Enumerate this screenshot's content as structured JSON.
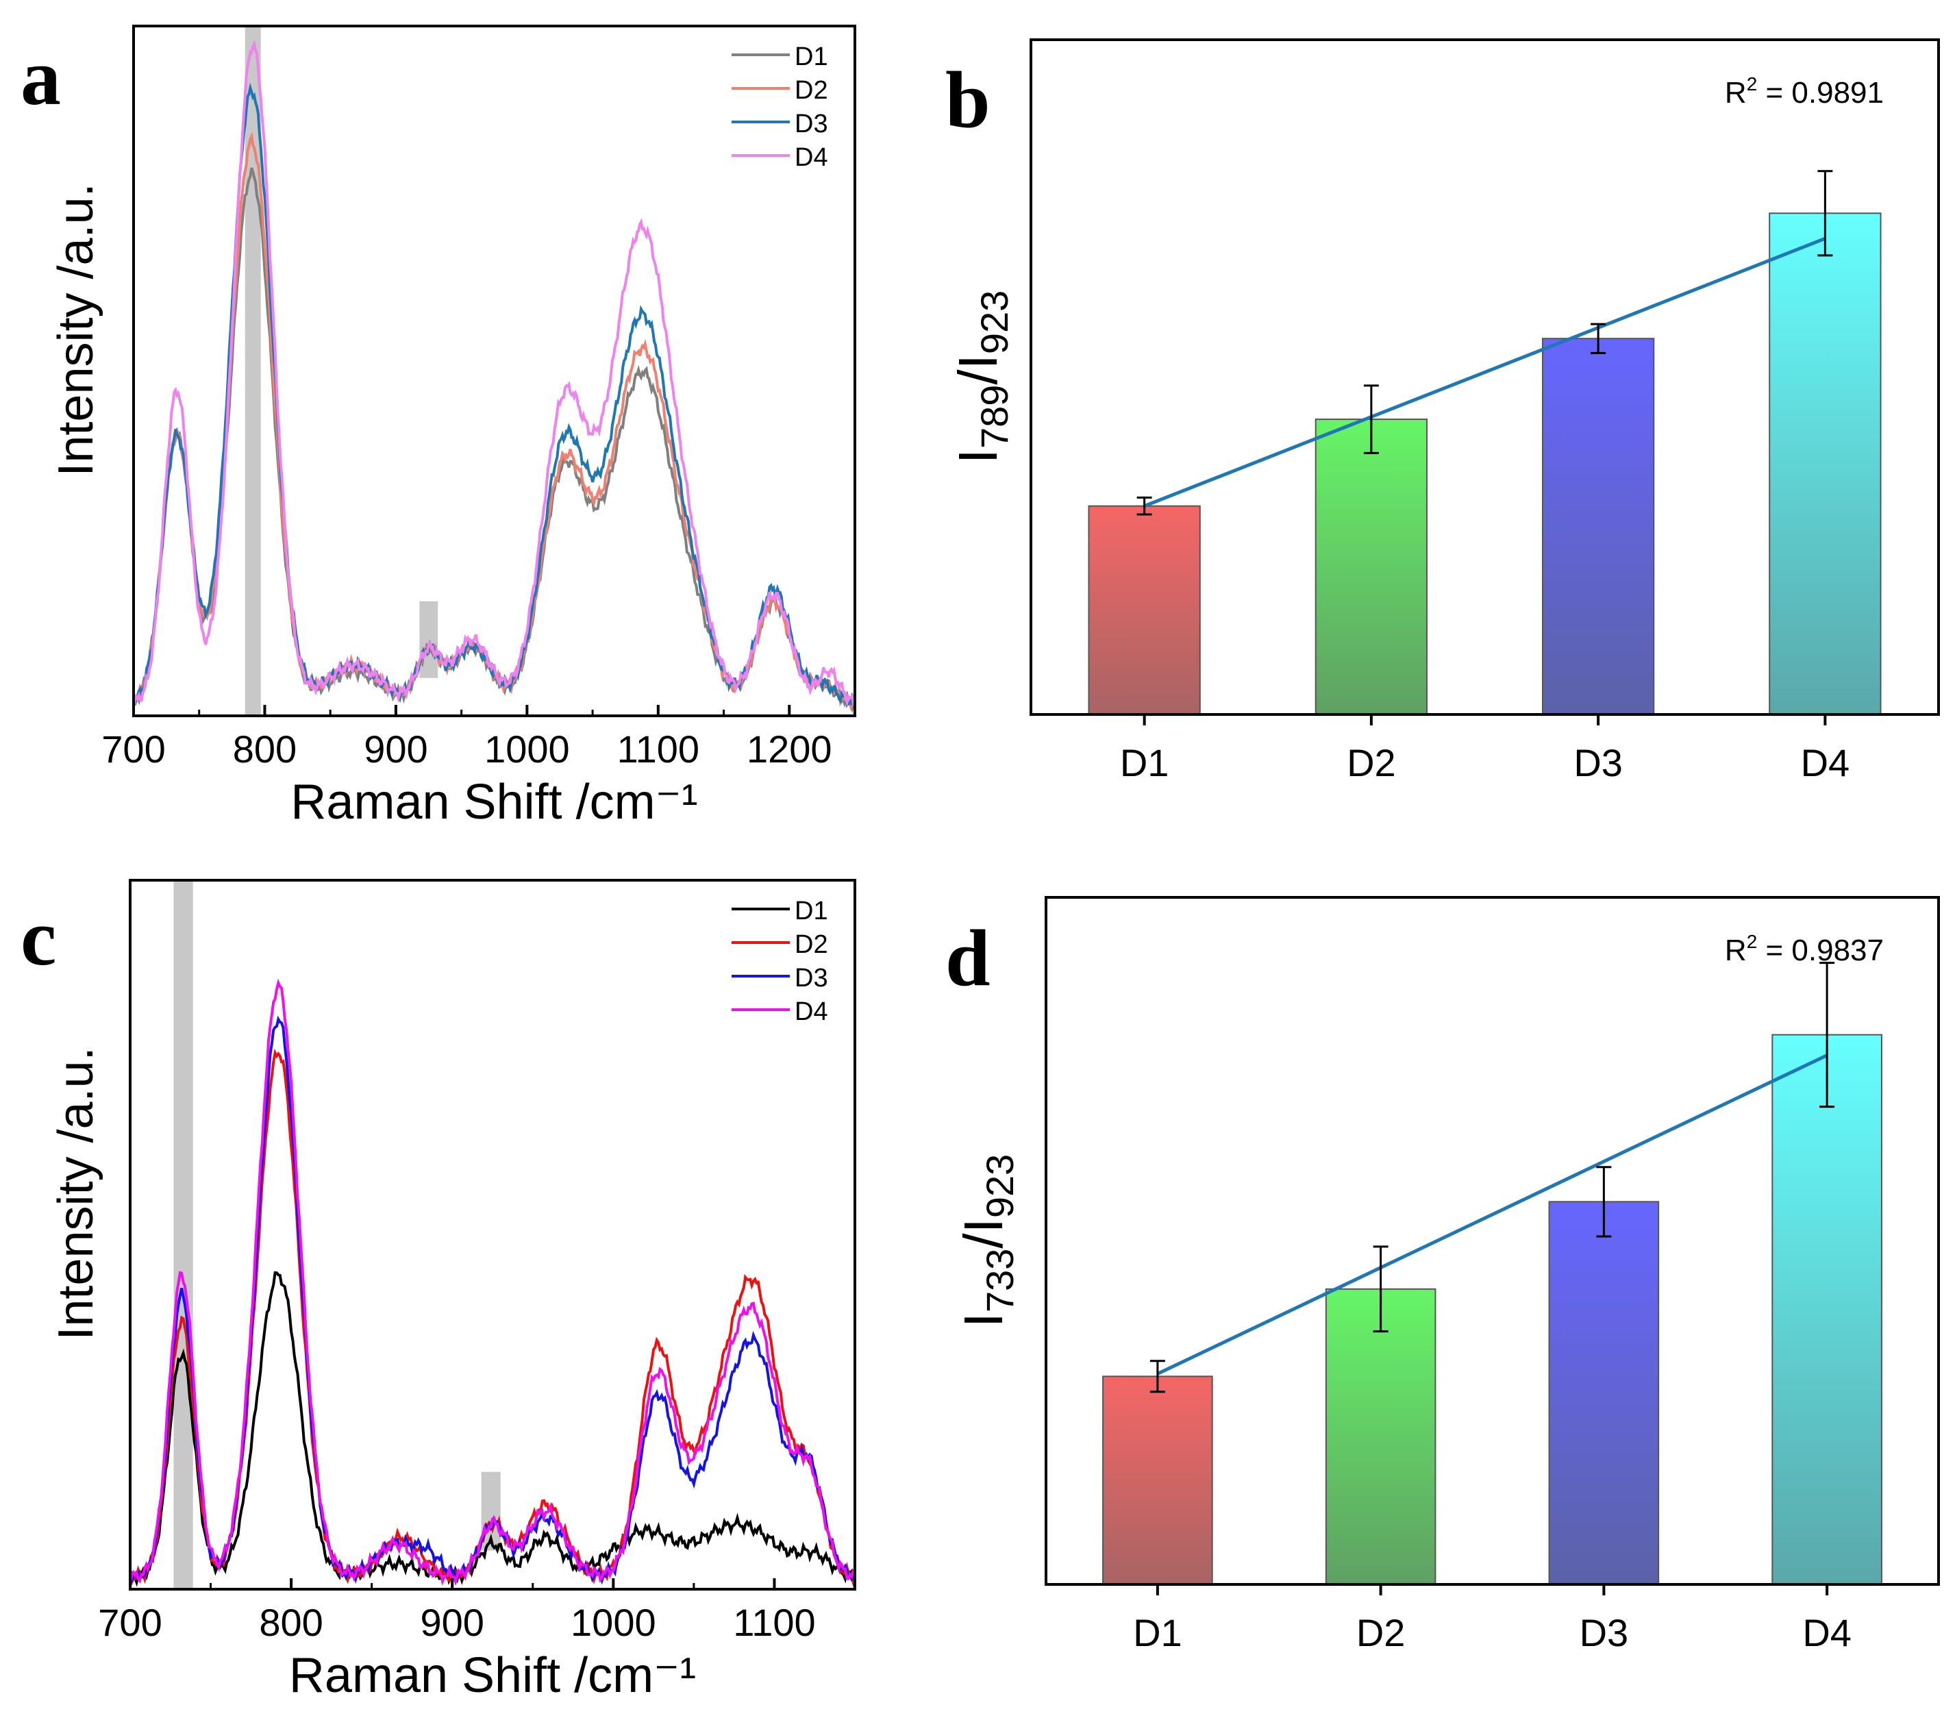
{
  "figure": {
    "panels": [
      "a",
      "b",
      "c",
      "d"
    ]
  },
  "chart_data": [
    {
      "panel": "a",
      "type": "line",
      "xlabel": "Raman Shift /cm⁻¹",
      "ylabel": "Intensity /a.u.",
      "xlim": [
        700,
        1250
      ],
      "ylim": [
        0,
        1.08
      ],
      "xticks": [
        700,
        800,
        900,
        1000,
        1100,
        1200
      ],
      "yticks_shown": false,
      "legend_position": "top-right",
      "highlight_bands": [
        [
          785,
          797
        ],
        [
          918,
          932
        ]
      ],
      "series": [
        {
          "name": "D1",
          "color": "#808080",
          "peaks": [
            [
              733,
              0.42,
              11
            ],
            [
              790,
              0.83,
              16
            ],
            [
              868,
              0.05,
              20
            ],
            [
              925,
              0.08,
              9
            ],
            [
              958,
              0.09,
              14
            ],
            [
              1028,
              0.35,
              17
            ],
            [
              1075,
              0.22,
              22
            ],
            [
              1095,
              0.35,
              22
            ],
            [
              1130,
              0.07,
              14
            ],
            [
              1188,
              0.16,
              13
            ],
            [
              1225,
              0.03,
              10
            ]
          ]
        },
        {
          "name": "D2",
          "color": "#f08070",
          "peaks": [
            [
              733,
              0.42,
              11
            ],
            [
              790,
              0.88,
              16
            ],
            [
              868,
              0.06,
              20
            ],
            [
              925,
              0.08,
              9
            ],
            [
              958,
              0.09,
              14
            ],
            [
              1028,
              0.36,
              17
            ],
            [
              1075,
              0.23,
              22
            ],
            [
              1095,
              0.38,
              22
            ],
            [
              1130,
              0.08,
              14
            ],
            [
              1188,
              0.16,
              13
            ],
            [
              1225,
              0.03,
              10
            ]
          ]
        },
        {
          "name": "D3",
          "color": "#1f77b4",
          "peaks": [
            [
              733,
              0.42,
              11
            ],
            [
              790,
              0.96,
              16
            ],
            [
              868,
              0.06,
              20
            ],
            [
              925,
              0.08,
              9
            ],
            [
              958,
              0.09,
              14
            ],
            [
              1028,
              0.39,
              17
            ],
            [
              1075,
              0.26,
              22
            ],
            [
              1095,
              0.41,
              22
            ],
            [
              1130,
              0.08,
              14
            ],
            [
              1188,
              0.18,
              13
            ],
            [
              1225,
              0.03,
              10
            ]
          ]
        },
        {
          "name": "D4",
          "color": "#ee82ee",
          "peaks": [
            [
              733,
              0.49,
              10
            ],
            [
              791,
              1.03,
              15
            ],
            [
              868,
              0.06,
              20
            ],
            [
              925,
              0.08,
              9
            ],
            [
              958,
              0.1,
              14
            ],
            [
              1028,
              0.45,
              17
            ],
            [
              1075,
              0.32,
              22
            ],
            [
              1095,
              0.5,
              22
            ],
            [
              1130,
              0.08,
              14
            ],
            [
              1188,
              0.17,
              13
            ],
            [
              1230,
              0.05,
              8
            ]
          ]
        }
      ]
    },
    {
      "panel": "b",
      "type": "bar",
      "ylabel_main": "I",
      "ylabel_sub1": "789",
      "ylabel_sep": "/I",
      "ylabel_sub2": "923",
      "categories": [
        "D1",
        "D2",
        "D3",
        "D4"
      ],
      "values": [
        1.73,
        2.45,
        3.12,
        4.16
      ],
      "errors": [
        0.07,
        0.28,
        0.12,
        0.35
      ],
      "ylim": [
        0,
        5.6
      ],
      "colors_top": [
        "#f56666",
        "#66f566",
        "#6666ff",
        "#66ffff"
      ],
      "colors_bottom": [
        "#a86464",
        "#5fa064",
        "#5c62a8",
        "#5aa8aa"
      ],
      "fit": {
        "from": [
          1,
          1.73
        ],
        "to": [
          4,
          3.95
        ],
        "color": "#1f77b4"
      },
      "annotation": {
        "label": "R",
        "sup": "2",
        "eq": " = 0.9891"
      }
    },
    {
      "panel": "c",
      "type": "line",
      "xlabel": "Raman Shift /cm⁻¹",
      "ylabel": "Intensity /a.u.",
      "xlim": [
        700,
        1150
      ],
      "ylim": [
        0,
        1.08
      ],
      "xticks": [
        700,
        800,
        900,
        1000,
        1100
      ],
      "yticks_shown": false,
      "legend_position": "top-right",
      "highlight_bands": [
        [
          727,
          739
        ],
        [
          918,
          930
        ]
      ],
      "series": [
        {
          "name": "D1",
          "color": "#000000",
          "peaks": [
            [
              732,
              0.34,
              8
            ],
            [
              792,
              0.46,
              13
            ],
            [
              865,
              0.02,
              15
            ],
            [
              925,
              0.05,
              8
            ],
            [
              958,
              0.06,
              10
            ],
            [
              1020,
              0.07,
              20
            ],
            [
              1065,
              0.04,
              15
            ],
            [
              1088,
              0.06,
              18
            ],
            [
              1125,
              0.03,
              10
            ]
          ]
        },
        {
          "name": "D2",
          "color": "#ee1111",
          "peaks": [
            [
              732,
              0.39,
              8
            ],
            [
              792,
              0.8,
              13
            ],
            [
              868,
              0.06,
              12
            ],
            [
              925,
              0.08,
              8
            ],
            [
              958,
              0.11,
              12
            ],
            [
              1027,
              0.33,
              11
            ],
            [
              1065,
              0.21,
              18
            ],
            [
              1090,
              0.36,
              15
            ],
            [
              1122,
              0.14,
              9
            ]
          ]
        },
        {
          "name": "D3",
          "color": "#1414e6",
          "peaks": [
            [
              732,
              0.43,
              8
            ],
            [
              792,
              0.85,
              13
            ],
            [
              865,
              0.05,
              12
            ],
            [
              885,
              0.03,
              8
            ],
            [
              925,
              0.08,
              8
            ],
            [
              958,
              0.09,
              12
            ],
            [
              1027,
              0.26,
              11
            ],
            [
              1065,
              0.16,
              18
            ],
            [
              1090,
              0.29,
              15
            ],
            [
              1122,
              0.15,
              9
            ]
          ]
        },
        {
          "name": "D4",
          "color": "#ee11ee",
          "peaks": [
            [
              732,
              0.46,
              8
            ],
            [
              792,
              0.9,
              13
            ],
            [
              865,
              0.05,
              12
            ],
            [
              925,
              0.08,
              8
            ],
            [
              958,
              0.1,
              12
            ],
            [
              1027,
              0.29,
              11
            ],
            [
              1065,
              0.2,
              18
            ],
            [
              1090,
              0.32,
              15
            ],
            [
              1122,
              0.14,
              9
            ]
          ]
        }
      ]
    },
    {
      "panel": "d",
      "type": "bar",
      "ylabel_main": "I",
      "ylabel_sub1": "733",
      "ylabel_sep": "/I",
      "ylabel_sub2": "923",
      "categories": [
        "D1",
        "D2",
        "D3",
        "D4"
      ],
      "values": [
        1.62,
        2.3,
        2.98,
        4.28
      ],
      "errors": [
        0.12,
        0.33,
        0.27,
        0.56
      ],
      "ylim": [
        0,
        5.35
      ],
      "colors_top": [
        "#f56666",
        "#66f566",
        "#6666ff",
        "#66ffff"
      ],
      "colors_bottom": [
        "#a86464",
        "#5fa064",
        "#5c62a8",
        "#5aa8aa"
      ],
      "fit": {
        "from": [
          1,
          1.64
        ],
        "to": [
          4,
          4.12
        ],
        "color": "#1f77b4"
      },
      "annotation": {
        "label": "R",
        "sup": "2",
        "eq": " = 0.9837"
      }
    }
  ]
}
